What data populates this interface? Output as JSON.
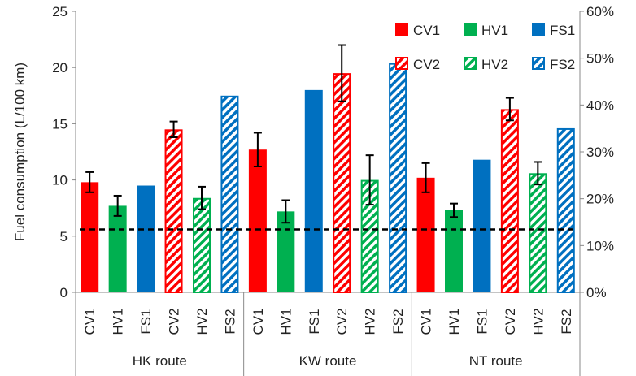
{
  "chart_data": {
    "type": "bar",
    "ylabel": "Fuel consumption (L/100 km)",
    "ylim": [
      0,
      25
    ],
    "yticks": [
      "0",
      "5",
      "10",
      "15",
      "20",
      "25"
    ],
    "y2lim": [
      0,
      60
    ],
    "y2ticks": [
      "0%",
      "10%",
      "20%",
      "30%",
      "40%",
      "50%",
      "60%"
    ],
    "groups": [
      {
        "name": "HK route",
        "categories": [
          "CV1",
          "HV1",
          "FS1",
          "CV2",
          "HV2",
          "FS2"
        ],
        "values": [
          9.8,
          7.7,
          9.5,
          14.5,
          8.4,
          17.5
        ],
        "errors": [
          0.9,
          0.9,
          null,
          0.7,
          1.0,
          null
        ]
      },
      {
        "name": "KW route",
        "categories": [
          "CV1",
          "HV1",
          "FS1",
          "CV2",
          "HV2",
          "FS2"
        ],
        "values": [
          12.7,
          7.2,
          18.0,
          19.5,
          10.0,
          20.4
        ],
        "errors": [
          1.5,
          1.0,
          null,
          2.5,
          2.2,
          null
        ]
      },
      {
        "name": "NT route",
        "categories": [
          "CV1",
          "HV1",
          "FS1",
          "CV2",
          "HV2",
          "FS2"
        ],
        "values": [
          10.2,
          7.3,
          11.8,
          16.3,
          10.6,
          14.6
        ],
        "errors": [
          1.3,
          0.6,
          null,
          1.0,
          1.0,
          null
        ]
      }
    ],
    "reference_line": {
      "value": 5.6,
      "style": "dashed"
    },
    "legend": {
      "placement": "top-right",
      "entries": [
        {
          "label": "CV1",
          "color": "#ff0000",
          "pattern": "solid"
        },
        {
          "label": "HV1",
          "color": "#00b050",
          "pattern": "solid"
        },
        {
          "label": "FS1",
          "color": "#0070c0",
          "pattern": "solid"
        },
        {
          "label": "CV2",
          "color": "#ff0000",
          "pattern": "hatched"
        },
        {
          "label": "HV2",
          "color": "#00b050",
          "pattern": "hatched"
        },
        {
          "label": "FS2",
          "color": "#0070c0",
          "pattern": "hatched"
        }
      ]
    }
  }
}
